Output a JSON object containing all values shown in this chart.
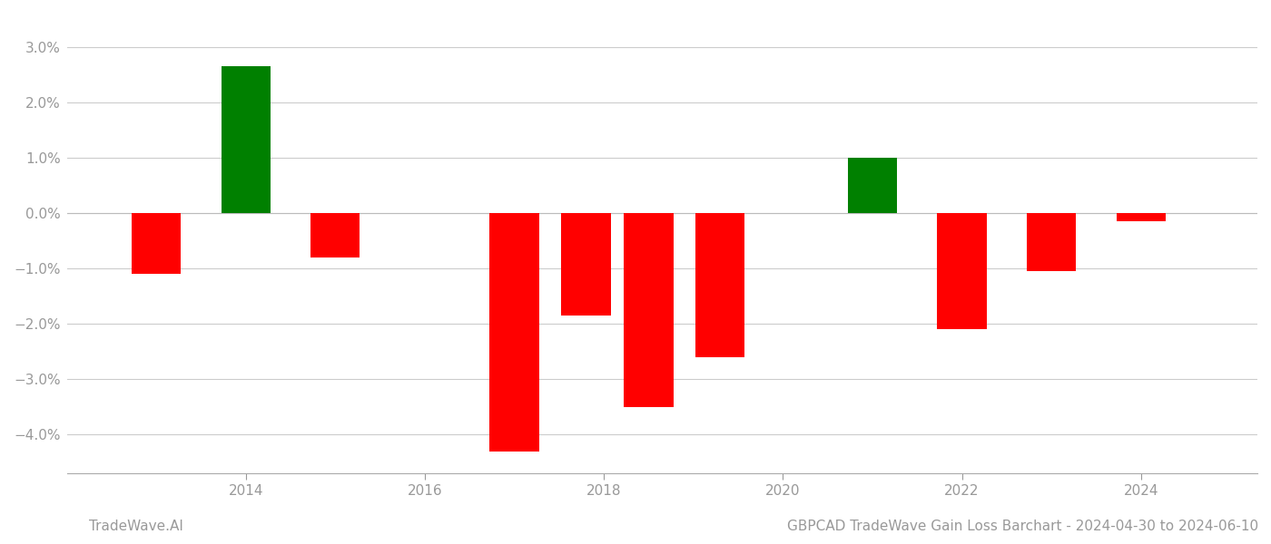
{
  "years": [
    2013,
    2014,
    2015,
    2017,
    2017.8,
    2018.5,
    2019.3,
    2021,
    2022,
    2023,
    2024
  ],
  "values": [
    -1.1,
    2.65,
    -0.8,
    -4.3,
    -1.85,
    -3.5,
    -2.6,
    1.0,
    -2.1,
    -1.05,
    -0.15
  ],
  "colors": [
    "#ff0000",
    "#008000",
    "#ff0000",
    "#ff0000",
    "#ff0000",
    "#ff0000",
    "#ff0000",
    "#008000",
    "#ff0000",
    "#ff0000",
    "#ff0000"
  ],
  "ylim": [
    -4.7,
    3.5
  ],
  "yticks": [
    -4.0,
    -3.0,
    -2.0,
    -1.0,
    0.0,
    1.0,
    2.0,
    3.0
  ],
  "ytick_labels": [
    "−4.0%",
    "−3.0%",
    "−2.0%",
    "−1.0%",
    "0.0%",
    "1.0%",
    "2.0%",
    "3.0%"
  ],
  "xtick_labels": [
    "2014",
    "2016",
    "2018",
    "2020",
    "2022",
    "2024"
  ],
  "xtick_positions": [
    2014,
    2016,
    2018,
    2020,
    2022,
    2024
  ],
  "bar_width": 0.55,
  "background_color": "#ffffff",
  "grid_color": "#cccccc",
  "footer_left": "TradeWave.AI",
  "footer_right": "GBPCAD TradeWave Gain Loss Barchart - 2024-04-30 to 2024-06-10",
  "tick_label_color": "#999999",
  "spine_color": "#aaaaaa",
  "xlim": [
    2012.0,
    2025.3
  ]
}
